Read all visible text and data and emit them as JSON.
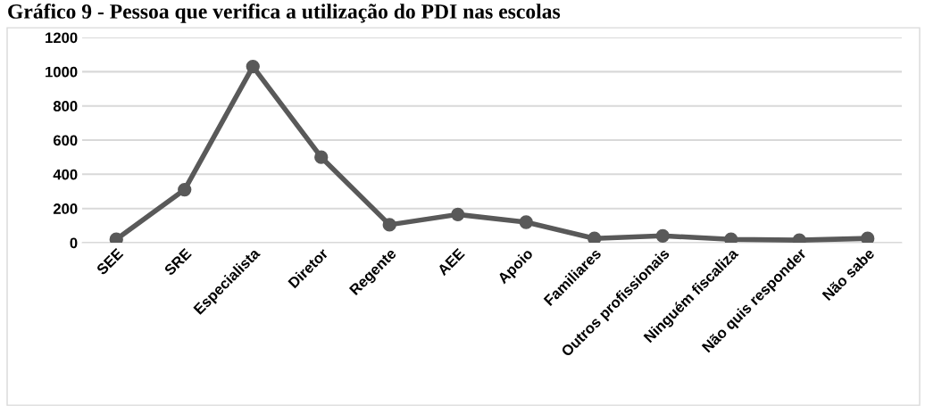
{
  "chart_data": {
    "type": "line",
    "title": "Gráfico 9 - Pessoa que verifica a utilização do PDI nas escolas",
    "categories": [
      "SEE",
      "SRE",
      "Especialista",
      "Diretor",
      "Regente",
      "AEE",
      "Apoio",
      "Familiares",
      "Outros profissionais",
      "Ninguém fiscaliza",
      "Não quis responder",
      "Não sabe"
    ],
    "series": [
      {
        "color": "#595959",
        "values": [
          20,
          310,
          1030,
          500,
          105,
          165,
          120,
          25,
          40,
          20,
          15,
          25
        ]
      }
    ],
    "ylim": [
      0,
      1200
    ],
    "yticks": [
      0,
      200,
      400,
      600,
      800,
      1000,
      1200
    ],
    "grid": "y",
    "marker": "circle",
    "line_style": "solid"
  }
}
